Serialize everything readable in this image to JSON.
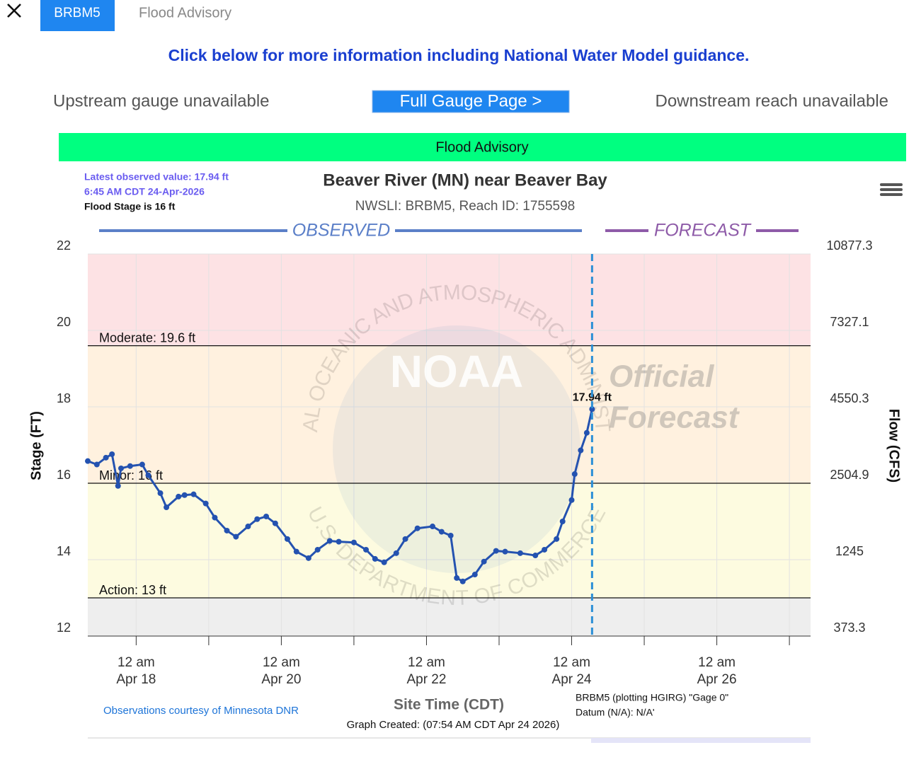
{
  "tabs": {
    "active": "BRBM5",
    "other": "Flood Advisory"
  },
  "info_link": "Click below for more information including National Water Model guidance.",
  "nav": {
    "upstream": "Upstream gauge unavailable",
    "button": "Full Gauge Page >",
    "downstream": "Downstream reach unavailable"
  },
  "status_bar": {
    "text": "Flood Advisory",
    "color": "#00ff80"
  },
  "chart_data": {
    "type": "line",
    "title": "Beaver River (MN) near Beaver Bay",
    "subtitle": "NWSLI: BRBM5, Reach ID: 1755598",
    "info": [
      "Latest observed value: 17.94 ft",
      "6:45 AM CDT 24-Apr-2026",
      "Flood Stage is 16 ft"
    ],
    "section_labels": [
      "OBSERVED",
      "FORECAST"
    ],
    "watermark": {
      "logo": "NOAA",
      "ring_top": "NATIONAL OCEANIC AND ATMOSPHERIC ADMINISTRATION",
      "ring_bottom": "U.S. DEPARTMENT OF COMMERCE",
      "stamp": [
        "Official",
        "Forecast"
      ]
    },
    "y_label": "Stage (FT)",
    "y2_label": "Flow (CFS)",
    "x_label": "Site Time (CDT)",
    "credit": "Observations courtesy of Minnesota DNR",
    "created": "Graph Created: (07:54 AM CDT Apr 24 2026)",
    "datum": [
      "BRBM5 (plotting HGIRG) \"Gage 0\"",
      "Datum (N/A): N/A'"
    ],
    "color": "#2452b0",
    "grid": true,
    "ylim": [
      12,
      22
    ],
    "yticks": [
      12,
      14,
      16,
      18,
      20,
      22
    ],
    "y2ticks": [
      373.3,
      1245,
      2504.9,
      4550.3,
      7327.1,
      10877.3
    ],
    "xlim": [
      "2026-04-17T08:00",
      "2026-04-27T07:00"
    ],
    "xticks": [
      {
        "value": "2026-04-18T00:00",
        "label": [
          "12 am",
          "Apr 18"
        ]
      },
      {
        "value": "2026-04-19T00:00",
        "label": null
      },
      {
        "value": "2026-04-20T00:00",
        "label": [
          "12 am",
          "Apr 20"
        ]
      },
      {
        "value": "2026-04-21T00:00",
        "label": null
      },
      {
        "value": "2026-04-22T00:00",
        "label": [
          "12 am",
          "Apr 22"
        ]
      },
      {
        "value": "2026-04-23T00:00",
        "label": null
      },
      {
        "value": "2026-04-24T00:00",
        "label": [
          "12 am",
          "Apr 24"
        ]
      },
      {
        "value": "2026-04-25T00:00",
        "label": null
      },
      {
        "value": "2026-04-26T00:00",
        "label": [
          "12 am",
          "Apr 26"
        ]
      },
      {
        "value": "2026-04-27T00:00",
        "label": null
      }
    ],
    "below_color": "#eeeeee",
    "thresholds": [
      {
        "label": "Action: 13 ft",
        "value": 13,
        "color": "#fdfbe0"
      },
      {
        "label": "Minor: 16 ft",
        "value": 16,
        "color": "#fff1df"
      },
      {
        "label": "Moderate: 19.6 ft",
        "value": 19.6,
        "color": "#fde2e4"
      }
    ],
    "x": [
      "2026-04-17T08:00",
      "2026-04-17T11:00",
      "2026-04-17T14:00",
      "2026-04-17T16:00",
      "2026-04-17T18:00",
      "2026-04-17T19:00",
      "2026-04-17T22:00",
      "2026-04-18T02:00",
      "2026-04-18T04:00",
      "2026-04-18T08:00",
      "2026-04-18T10:00",
      "2026-04-18T14:00",
      "2026-04-18T16:00",
      "2026-04-18T19:00",
      "2026-04-18T23:00",
      "2026-04-19T02:00",
      "2026-04-19T06:00",
      "2026-04-19T09:00",
      "2026-04-19T13:00",
      "2026-04-19T16:00",
      "2026-04-19T19:00",
      "2026-04-19T22:00",
      "2026-04-20T02:00",
      "2026-04-20T05:00",
      "2026-04-20T09:00",
      "2026-04-20T12:00",
      "2026-04-20T16:00",
      "2026-04-20T19:00",
      "2026-04-21T00:00",
      "2026-04-21T04:00",
      "2026-04-21T07:00",
      "2026-04-21T10:00",
      "2026-04-21T14:00",
      "2026-04-21T17:00",
      "2026-04-21T21:00",
      "2026-04-22T02:00",
      "2026-04-22T05:00",
      "2026-04-22T08:00",
      "2026-04-22T10:00",
      "2026-04-22T12:00",
      "2026-04-22T16:00",
      "2026-04-22T19:00",
      "2026-04-22T23:00",
      "2026-04-23T02:00",
      "2026-04-23T07:00",
      "2026-04-23T12:00",
      "2026-04-23T15:00",
      "2026-04-23T19:00",
      "2026-04-23T21:00",
      "2026-04-24T00:00",
      "2026-04-24T01:00",
      "2026-04-24T03:00",
      "2026-04-24T05:00",
      "2026-04-24T06:45"
    ],
    "values": [
      16.58,
      16.49,
      16.67,
      16.76,
      15.93,
      16.39,
      16.45,
      16.49,
      16.21,
      15.74,
      15.37,
      15.65,
      15.69,
      15.71,
      15.47,
      15.1,
      14.76,
      14.6,
      14.87,
      15.06,
      15.13,
      14.95,
      14.54,
      14.21,
      14.04,
      14.26,
      14.49,
      14.47,
      14.45,
      14.26,
      14.02,
      13.93,
      14.17,
      14.54,
      14.82,
      14.87,
      14.73,
      14.63,
      13.52,
      13.43,
      13.61,
      13.95,
      14.23,
      14.21,
      14.17,
      14.11,
      14.26,
      14.54,
      15.0,
      15.56,
      16.24,
      16.86,
      17.32,
      17.94
    ],
    "value_labels": [
      null,
      null,
      null,
      null,
      null,
      null,
      null,
      null,
      null,
      null,
      null,
      null,
      null,
      null,
      null,
      null,
      null,
      null,
      null,
      null,
      null,
      null,
      null,
      null,
      null,
      null,
      null,
      null,
      null,
      null,
      null,
      null,
      null,
      null,
      null,
      null,
      null,
      null,
      null,
      null,
      null,
      null,
      null,
      null,
      null,
      null,
      null,
      null,
      null,
      null,
      null,
      null,
      null,
      "17.94 ft"
    ]
  }
}
